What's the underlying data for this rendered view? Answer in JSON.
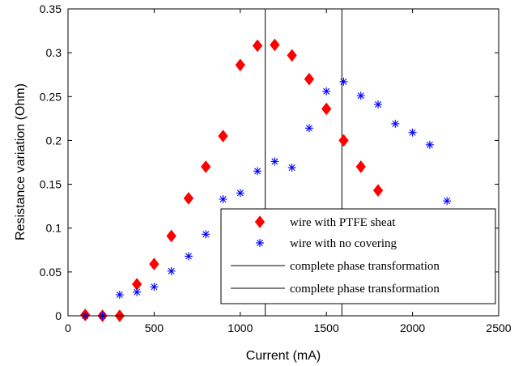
{
  "chart_data": {
    "type": "scatter",
    "xlabel": "Current (mA)",
    "ylabel": "Resistance variation (Ohm)",
    "xlim": [
      0,
      2500
    ],
    "ylim": [
      0,
      0.35
    ],
    "xticks": [
      0,
      500,
      1000,
      1500,
      2000,
      2500
    ],
    "yticks": [
      0,
      0.05,
      0.1,
      0.15,
      0.2,
      0.25,
      0.3,
      0.35
    ],
    "xtick_labels": [
      "0",
      "500",
      "1000",
      "1500",
      "2000",
      "2500"
    ],
    "ytick_labels": [
      "0",
      "0.05",
      "0.1",
      "0.15",
      "0.2",
      "0.25",
      "0.3",
      "0.35"
    ],
    "grid": false,
    "legend_position": "bottom-right",
    "series": [
      {
        "name": "wire with PTFE sheat",
        "marker": "diamond",
        "color": "#ff0000",
        "x": [
          100,
          200,
          300,
          400,
          500,
          600,
          700,
          800,
          900,
          1000,
          1100,
          1200,
          1300,
          1400,
          1500,
          1600,
          1700,
          1800
        ],
        "y": [
          0.001,
          0.0,
          0.0,
          0.036,
          0.059,
          0.091,
          0.134,
          0.17,
          0.205,
          0.286,
          0.308,
          0.309,
          0.297,
          0.27,
          0.236,
          0.2,
          0.17,
          0.143
        ]
      },
      {
        "name": "wire with no covering",
        "marker": "asterisk",
        "color": "#0000ff",
        "x": [
          100,
          200,
          300,
          400,
          500,
          600,
          700,
          800,
          900,
          1000,
          1100,
          1200,
          1300,
          1400,
          1500,
          1600,
          1700,
          1800,
          1900,
          2000,
          2100,
          2200
        ],
        "y": [
          0.0,
          0.0,
          0.024,
          0.027,
          0.033,
          0.051,
          0.068,
          0.093,
          0.133,
          0.14,
          0.165,
          0.176,
          0.169,
          0.214,
          0.256,
          0.267,
          0.251,
          0.241,
          0.219,
          0.209,
          0.195,
          0.131
        ]
      },
      {
        "name": "complete phase transformation",
        "type": "vline",
        "color": "#000000",
        "x": 1145
      },
      {
        "name": "complete phase transformation",
        "type": "vline",
        "color": "#000000",
        "x": 1590
      }
    ]
  }
}
